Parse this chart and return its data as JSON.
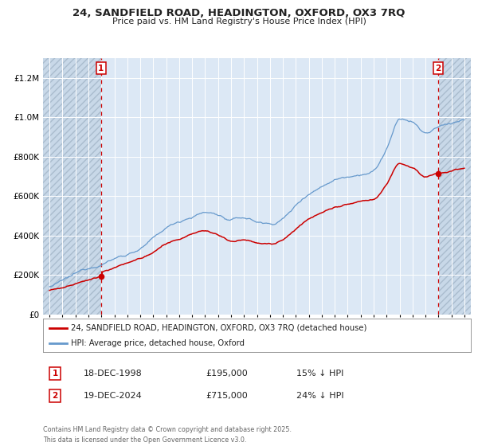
{
  "title_line1": "24, SANDFIELD ROAD, HEADINGTON, OXFORD, OX3 7RQ",
  "title_line2": "Price paid vs. HM Land Registry's House Price Index (HPI)",
  "sale1_date": "18-DEC-1998",
  "sale1_price": 195000,
  "sale1_hpi_diff": "15% ↓ HPI",
  "sale2_date": "19-DEC-2024",
  "sale2_price": 715000,
  "sale2_hpi_diff": "24% ↓ HPI",
  "legend_label1": "24, SANDFIELD ROAD, HEADINGTON, OXFORD, OX3 7RQ (detached house)",
  "legend_label2": "HPI: Average price, detached house, Oxford",
  "footnote": "Contains HM Land Registry data © Crown copyright and database right 2025.\nThis data is licensed under the Open Government Licence v3.0.",
  "color_red": "#cc0000",
  "color_blue": "#6699cc",
  "color_bg_chart": "#dce8f5",
  "color_hatch": "#c8d8e8",
  "color_grid": "#ffffff",
  "color_vline": "#cc0000",
  "ylim_max": 1300000,
  "xstart": 1994.5,
  "xend": 2027.5,
  "sale1_x": 1998.97,
  "sale2_x": 2024.97,
  "seed": 12345
}
